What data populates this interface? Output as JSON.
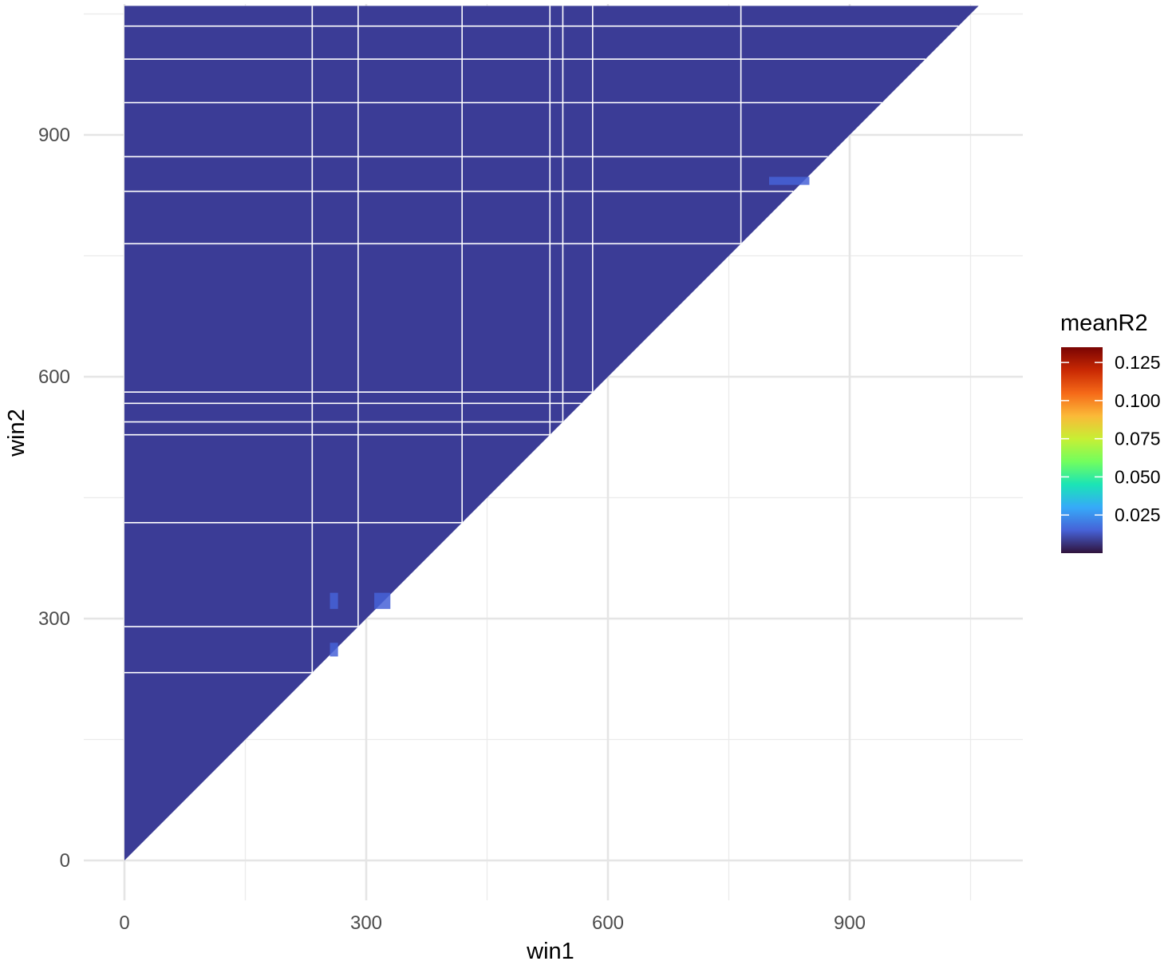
{
  "chart_data": {
    "type": "heatmap",
    "xlabel": "win1",
    "ylabel": "win2",
    "x_ticks": [
      0,
      300,
      600,
      900
    ],
    "y_ticks": [
      0,
      300,
      600,
      900
    ],
    "xlim": [
      -50,
      1110
    ],
    "ylim": [
      -50,
      1060
    ],
    "grid": true,
    "legend": {
      "title": "meanR2",
      "placement": "right",
      "range": [
        0,
        0.135
      ],
      "ticks": [
        0.025,
        0.05,
        0.075,
        0.1,
        0.125
      ],
      "tick_labels": [
        "0.025",
        "0.050",
        "0.075",
        "0.100",
        "0.125"
      ],
      "palette": [
        "#30123b",
        "#4662d7",
        "#36aaf9",
        "#1ae4b6",
        "#72fe5e",
        "#c7ef34",
        "#fbb938",
        "#f56918",
        "#c82803",
        "#7a0403"
      ]
    },
    "data_extent": {
      "win1": [
        0,
        1060
      ],
      "win2": [
        0,
        1060
      ],
      "region": "win2 >= win1"
    },
    "background_value": 0.008,
    "background_color": "#3b3c96",
    "gap_color": "#ffffff",
    "missing_rows_win2": [
      1035,
      994,
      940,
      873,
      830,
      765,
      581,
      567,
      544,
      528,
      419,
      290,
      233
    ],
    "missing_cols_win1": [
      233,
      290,
      419,
      528,
      544,
      581,
      765
    ],
    "high_blocks": [
      {
        "win1": [
          255,
          265
        ],
        "win2": [
          312,
          332
        ],
        "meanR2": 0.02
      },
      {
        "win1": [
          310,
          330
        ],
        "win2": [
          312,
          332
        ],
        "meanR2": 0.02
      },
      {
        "win1": [
          255,
          265
        ],
        "win2": [
          253,
          270
        ],
        "meanR2": 0.02
      },
      {
        "win1": [
          800,
          850
        ],
        "win2": [
          838,
          848
        ],
        "meanR2": 0.02
      }
    ]
  }
}
